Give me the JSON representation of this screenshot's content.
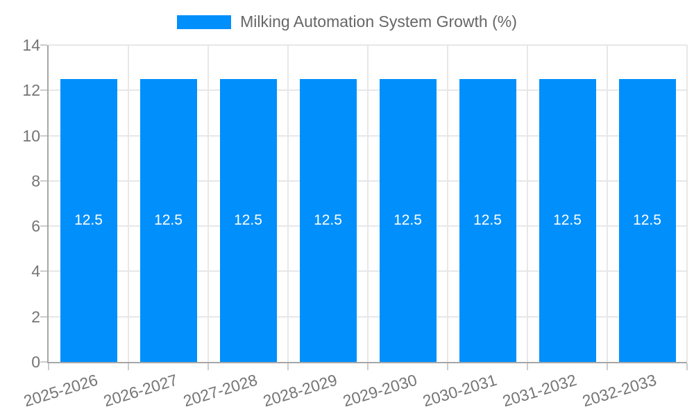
{
  "legend": {
    "label": "Milking Automation System Growth (%)"
  },
  "colors": {
    "bar": "#008FFB",
    "bar_label": "#FFFFFF",
    "grid_line": "#E7E7E7",
    "axis_line": "#A6A6A6",
    "tick_mark": "#CCCCCC",
    "axis_label": "#757575",
    "legend_label": "#666666",
    "background": "#FFFFFF"
  },
  "chart_data": {
    "type": "bar",
    "title": "Milking Automation System Growth (%)",
    "categories": [
      "2025-2026",
      "2026-2027",
      "2027-2028",
      "2028-2029",
      "2029-2030",
      "2030-2031",
      "2031-2032",
      "2032-2033"
    ],
    "values": [
      12.5,
      12.5,
      12.5,
      12.5,
      12.5,
      12.5,
      12.5,
      12.5
    ],
    "bar_value_labels": [
      "12.5",
      "12.5",
      "12.5",
      "12.5",
      "12.5",
      "12.5",
      "12.5",
      "12.5"
    ],
    "xlabel": "",
    "ylabel": "",
    "ylim": [
      0,
      14
    ],
    "yticks": [
      0,
      2,
      4,
      6,
      8,
      10,
      12,
      14
    ],
    "grid": true,
    "legend_position": "top-center",
    "x_label_rotation_deg": -17
  }
}
